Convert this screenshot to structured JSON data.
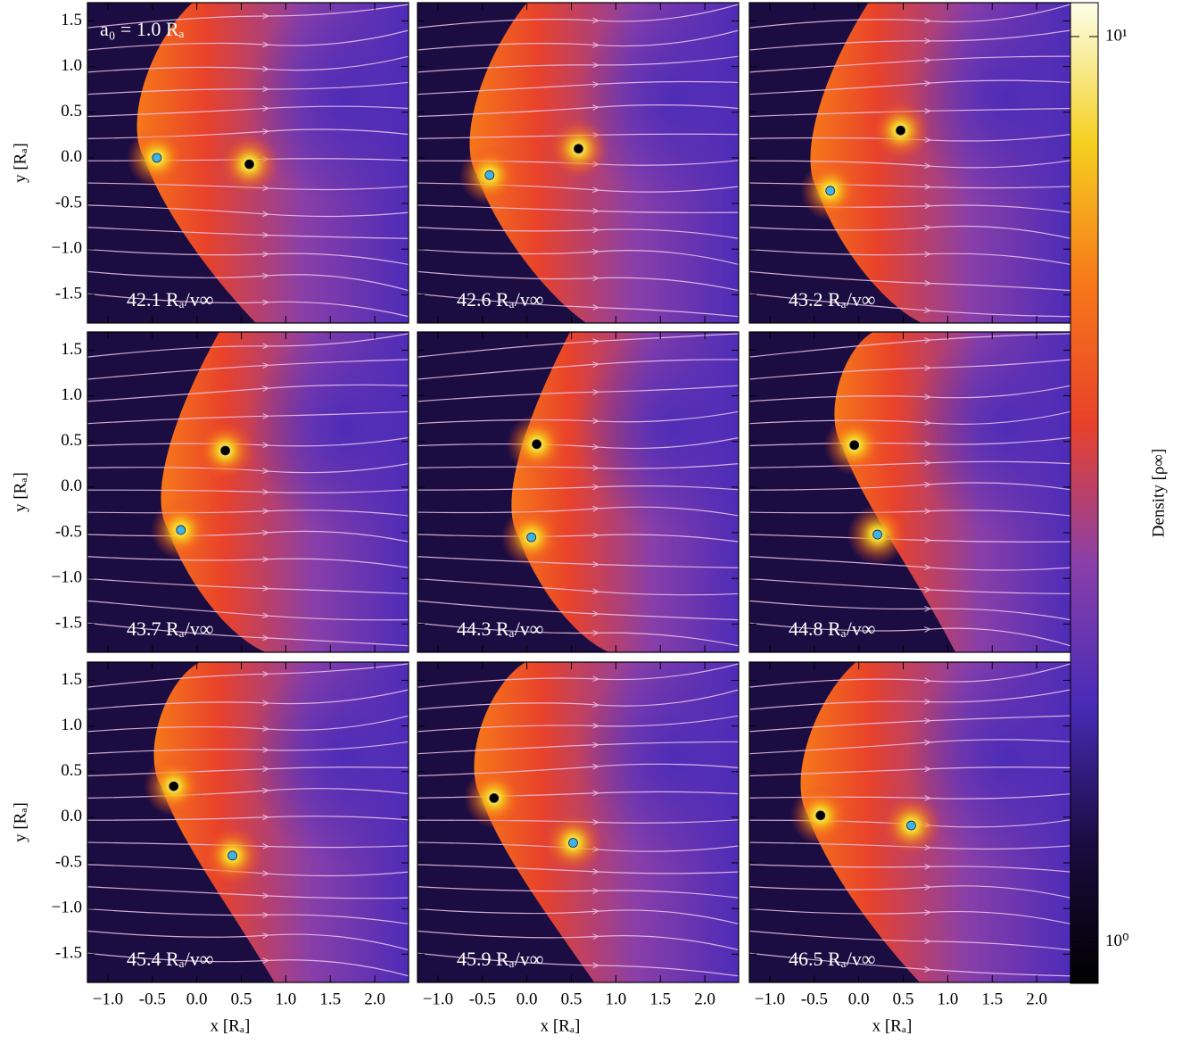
{
  "chart_data": {
    "type": "heatmap",
    "annotation": "a₀ = 1.0 Rₐ",
    "xlabel": "x [Rₐ]",
    "ylabel": "y [Rₐ]",
    "xlim": [
      -1.23,
      2.38
    ],
    "ylim": [
      -1.81,
      1.7
    ],
    "xticks": [
      {
        "value": -1,
        "label": "−1.0"
      },
      -0.5,
      {
        "value": 0,
        "label": "0.0"
      },
      0.5,
      {
        "value": 1,
        "label": "1.0"
      },
      1.5,
      {
        "value": 2,
        "label": "2.0"
      }
    ],
    "yticks": [
      1.5,
      {
        "value": 1,
        "label": "1.0"
      },
      0.5,
      {
        "value": 0,
        "label": "0.0"
      },
      -0.5,
      {
        "value": -1,
        "label": "−1.0"
      },
      -1.5
    ],
    "marker_colors": [
      "#3cb4e6",
      "#000000"
    ],
    "panels": [
      {
        "label": "42.1 Rₐ/v∞",
        "x": [
          -0.45,
          0.59
        ],
        "y": [
          0.0,
          -0.07
        ]
      },
      {
        "label": "42.6 Rₐ/v∞",
        "x": [
          -0.42,
          0.58
        ],
        "y": [
          -0.19,
          0.1
        ]
      },
      {
        "label": "43.2 Rₐ/v∞",
        "x": [
          -0.32,
          0.47
        ],
        "y": [
          -0.36,
          0.3
        ]
      },
      {
        "label": "43.7 Rₐ/v∞",
        "x": [
          -0.18,
          0.32
        ],
        "y": [
          -0.47,
          0.4
        ]
      },
      {
        "label": "44.3 Rₐ/v∞",
        "x": [
          0.05,
          0.11
        ],
        "y": [
          -0.55,
          0.47
        ]
      },
      {
        "label": "44.8 Rₐ/v∞",
        "x": [
          0.21,
          -0.05
        ],
        "y": [
          -0.52,
          0.46
        ]
      },
      {
        "label": "45.4 Rₐ/v∞",
        "x": [
          0.4,
          -0.26
        ],
        "y": [
          -0.42,
          0.34
        ]
      },
      {
        "label": "45.9 Rₐ/v∞",
        "x": [
          0.52,
          -0.37
        ],
        "y": [
          -0.28,
          0.21
        ]
      },
      {
        "label": "46.5 Rₐ/v∞",
        "x": [
          0.59,
          -0.43
        ],
        "y": [
          -0.09,
          0.02
        ]
      }
    ],
    "colorbar": {
      "label": "Density [ρ∞]",
      "log": true,
      "lim": [
        0.9,
        10.9
      ],
      "ticks": [
        {
          "value": 1,
          "label": "10⁰"
        },
        {
          "value": 10,
          "label": "10¹"
        }
      ],
      "colormap": [
        "#000000",
        "#1b0c41",
        "#4a2bb8",
        "#8a3fa8",
        "#e8422a",
        "#f7781a",
        "#f5d020",
        "#fcffea"
      ]
    }
  }
}
